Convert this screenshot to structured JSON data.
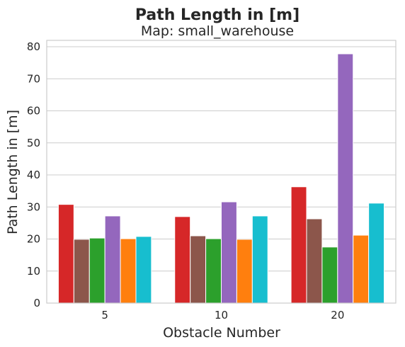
{
  "chart_data": {
    "type": "bar",
    "title": "Path Length in [m]",
    "subtitle": "Map: small_warehouse",
    "xlabel": "Obstacle Number",
    "ylabel": "Path Length in [m]",
    "categories": [
      "5",
      "10",
      "20"
    ],
    "ylim": [
      0,
      82
    ],
    "yticks": [
      0,
      10,
      20,
      30,
      40,
      50,
      60,
      70,
      80
    ],
    "grid": true,
    "legend": "none",
    "series": [
      {
        "color": "#d62728",
        "values": [
          30.8,
          27.0,
          36.3
        ]
      },
      {
        "color": "#8c564b",
        "values": [
          19.9,
          21.0,
          26.3
        ]
      },
      {
        "color": "#2ca02c",
        "values": [
          20.3,
          20.1,
          17.5
        ]
      },
      {
        "color": "#9467bd",
        "values": [
          27.2,
          31.6,
          77.8
        ]
      },
      {
        "color": "#ff7f0e",
        "values": [
          20.1,
          19.9,
          21.2
        ]
      },
      {
        "color": "#17becf",
        "values": [
          20.8,
          27.2,
          31.2
        ]
      }
    ]
  }
}
